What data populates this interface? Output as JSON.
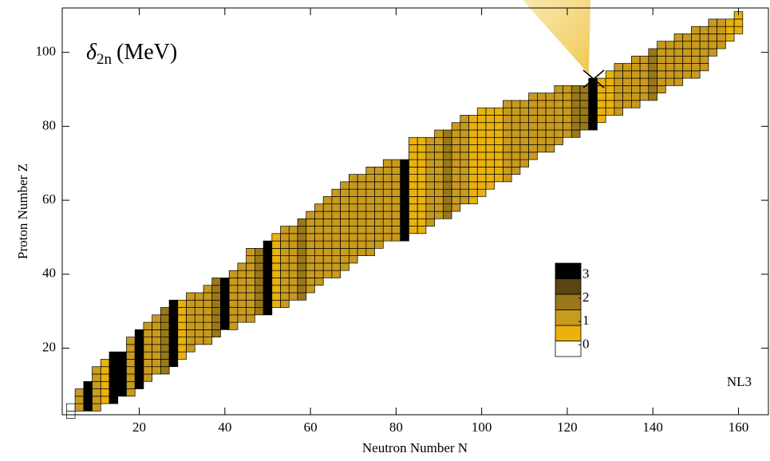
{
  "chart_data": {
    "type": "heatmap",
    "title_symbol": "δ",
    "title_subscript": "2n",
    "title_unit": "(MeV)",
    "annotation": "NL3",
    "x_label": "Neutron Number N",
    "y_label": "Proton Number Z",
    "xlim": [
      2,
      167
    ],
    "ylim": [
      2,
      112
    ],
    "xticks": [
      20,
      40,
      60,
      80,
      100,
      120,
      140,
      160
    ],
    "yticks": [
      20,
      40,
      60,
      80,
      100
    ],
    "x": [
      4,
      6,
      8,
      10,
      12,
      14,
      16,
      18,
      20,
      22,
      24,
      26,
      28,
      30,
      32,
      34,
      36,
      38,
      40,
      42,
      44,
      46,
      48,
      50,
      52,
      54,
      56,
      58,
      60,
      62,
      64,
      66,
      68,
      70,
      72,
      74,
      76,
      78,
      80,
      82,
      84,
      86,
      88,
      90,
      92,
      94,
      96,
      98,
      100,
      102,
      104,
      106,
      108,
      110,
      112,
      114,
      116,
      118,
      120,
      122,
      124,
      126,
      128,
      130,
      132,
      134,
      136,
      138,
      140,
      142,
      144,
      146,
      148,
      150,
      152,
      154,
      156,
      158,
      160
    ],
    "zmin": [
      2,
      4,
      4,
      4,
      6,
      6,
      8,
      8,
      10,
      12,
      14,
      14,
      16,
      18,
      20,
      22,
      22,
      24,
      26,
      26,
      28,
      28,
      30,
      30,
      32,
      32,
      34,
      34,
      36,
      38,
      40,
      40,
      42,
      44,
      46,
      46,
      48,
      50,
      50,
      50,
      52,
      52,
      54,
      56,
      56,
      58,
      60,
      60,
      62,
      64,
      66,
      66,
      68,
      70,
      72,
      74,
      74,
      76,
      78,
      78,
      80,
      80,
      82,
      84,
      84,
      86,
      86,
      88,
      88,
      90,
      92,
      92,
      94,
      94,
      96,
      100,
      102,
      104,
      106
    ],
    "zmax": [
      4,
      8,
      10,
      14,
      16,
      18,
      18,
      22,
      24,
      26,
      28,
      30,
      32,
      32,
      34,
      34,
      36,
      38,
      38,
      40,
      42,
      46,
      46,
      48,
      50,
      52,
      52,
      54,
      56,
      58,
      60,
      62,
      64,
      66,
      66,
      68,
      68,
      70,
      70,
      70,
      76,
      76,
      76,
      78,
      78,
      80,
      82,
      82,
      84,
      84,
      84,
      86,
      86,
      86,
      88,
      88,
      88,
      90,
      90,
      90,
      90,
      92,
      92,
      94,
      96,
      96,
      98,
      98,
      100,
      102,
      102,
      104,
      104,
      106,
      106,
      108,
      108,
      108,
      110
    ],
    "values": [
      -0.2,
      1.0,
      3.2,
      1.2,
      0.8,
      3.1,
      2.9,
      1.0,
      3.2,
      1.4,
      1.2,
      1.6,
      3.3,
      0.6,
      1.0,
      1.4,
      1.3,
      2.0,
      3.0,
      1.0,
      1.2,
      1.3,
      1.5,
      3.3,
      0.8,
      1.0,
      1.3,
      1.5,
      1.4,
      1.3,
      1.2,
      1.4,
      1.3,
      1.2,
      1.1,
      1.0,
      1.2,
      1.3,
      1.4,
      3.3,
      0.6,
      0.8,
      1.0,
      1.3,
      1.5,
      1.2,
      1.0,
      0.8,
      0.7,
      0.7,
      0.8,
      0.9,
      1.0,
      0.9,
      1.0,
      1.1,
      1.2,
      1.4,
      1.3,
      1.5,
      1.6,
      3.3,
      0.6,
      0.8,
      1.0,
      1.2,
      1.3,
      1.4,
      1.5,
      1.3,
      1.2,
      1.0,
      1.1,
      1.2,
      1.0,
      0.9,
      1.0,
      0.8,
      0.7
    ],
    "colorbar": {
      "range": [
        -0.5,
        3.5
      ],
      "ticks": [
        0,
        1,
        2,
        3
      ],
      "colors": [
        "#ffffff",
        "#e9b20c",
        "#c89a1e",
        "#9a7718",
        "#5a4410",
        "#000000"
      ]
    }
  }
}
